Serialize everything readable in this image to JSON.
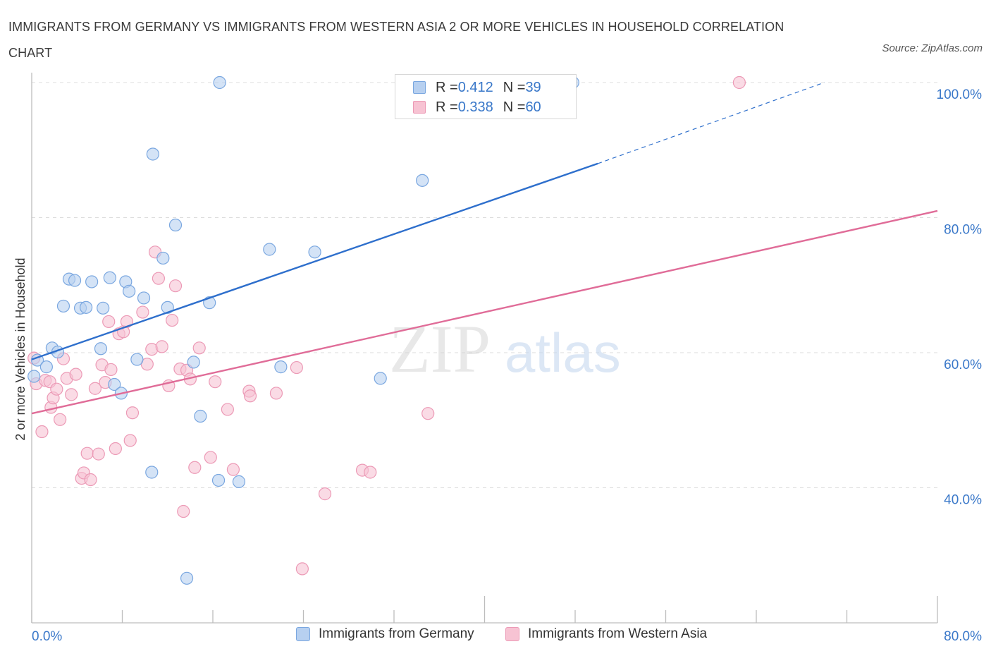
{
  "title": "IMMIGRANTS FROM GERMANY VS IMMIGRANTS FROM WESTERN ASIA 2 OR MORE VEHICLES IN HOUSEHOLD CORRELATION CHART",
  "source": "Source: ZipAtlas.com",
  "watermark": {
    "zip": "ZIP",
    "atlas": "atlas"
  },
  "colors": {
    "blue_fill": "#b7d0f0",
    "blue_line": "#2e6fcc",
    "pink_fill": "#f7c3d3",
    "pink_line": "#e06c98",
    "tick_label": "#3a78c9"
  },
  "legend_top": {
    "rows": [
      {
        "r_label": "R = ",
        "r_value": "0.412",
        "n_label": "N = ",
        "n_value": "39"
      },
      {
        "r_label": "R = ",
        "r_value": "0.338",
        "n_label": "N = ",
        "n_value": "60"
      }
    ]
  },
  "legend_bottom": [
    "Immigrants from Germany",
    "Immigrants from Western Asia"
  ],
  "chart_data": {
    "type": "scatter",
    "title": "IMMIGRANTS FROM GERMANY VS IMMIGRANTS FROM WESTERN ASIA 2 OR MORE VEHICLES IN HOUSEHOLD CORRELATION CHART",
    "xlabel": "",
    "ylabel": "2 or more Vehicles in Household",
    "xlim": [
      0,
      80
    ],
    "ylim": [
      20,
      100
    ],
    "x_tick_labels": [
      "0.0%",
      "80.0%"
    ],
    "y_ticks": [
      40,
      60,
      80,
      100
    ],
    "y_tick_labels": [
      "40.0%",
      "60.0%",
      "80.0%",
      "100.0%"
    ],
    "grid": true,
    "series": [
      {
        "name": "Immigrants from Germany",
        "R": 0.412,
        "N": 39,
        "trend": {
          "x0": 0,
          "y0": 59.0,
          "x1": 50,
          "y1": 88.0,
          "dashed_to_x": 70,
          "dashed_to_y": 100
        },
        "points": [
          [
            0.2,
            56.5
          ],
          [
            0.5,
            58.9
          ],
          [
            1.3,
            57.9
          ],
          [
            1.8,
            60.7
          ],
          [
            2.3,
            60.1
          ],
          [
            2.8,
            66.9
          ],
          [
            3.3,
            70.9
          ],
          [
            3.8,
            70.7
          ],
          [
            4.3,
            66.6
          ],
          [
            4.8,
            66.7
          ],
          [
            5.3,
            70.5
          ],
          [
            6.1,
            60.6
          ],
          [
            6.3,
            66.6
          ],
          [
            6.9,
            71.1
          ],
          [
            7.3,
            55.3
          ],
          [
            7.9,
            54.0
          ],
          [
            8.3,
            70.5
          ],
          [
            8.6,
            69.1
          ],
          [
            9.3,
            59.0
          ],
          [
            9.9,
            68.1
          ],
          [
            10.7,
            89.4
          ],
          [
            10.6,
            42.3
          ],
          [
            11.6,
            74.0
          ],
          [
            12.0,
            66.7
          ],
          [
            12.7,
            78.9
          ],
          [
            13.7,
            26.6
          ],
          [
            14.3,
            58.6
          ],
          [
            14.9,
            50.6
          ],
          [
            15.7,
            67.4
          ],
          [
            16.6,
            100.0
          ],
          [
            16.5,
            41.1
          ],
          [
            18.3,
            40.9
          ],
          [
            21.0,
            75.3
          ],
          [
            22.0,
            57.9
          ],
          [
            25.0,
            74.9
          ],
          [
            30.8,
            56.2
          ],
          [
            34.5,
            85.5
          ],
          [
            40.0,
            100.0
          ],
          [
            47.8,
            100.0
          ]
        ]
      },
      {
        "name": "Immigrants from Western Asia",
        "R": 0.338,
        "N": 60,
        "trend": {
          "x0": 0,
          "y0": 51.0,
          "x1": 80,
          "y1": 81.0
        },
        "points": [
          [
            0.2,
            59.2
          ],
          [
            0.4,
            55.4
          ],
          [
            0.9,
            48.3
          ],
          [
            1.2,
            55.9
          ],
          [
            1.6,
            55.7
          ],
          [
            1.7,
            51.9
          ],
          [
            1.9,
            53.3
          ],
          [
            2.2,
            54.6
          ],
          [
            2.5,
            50.1
          ],
          [
            2.8,
            59.1
          ],
          [
            3.1,
            56.2
          ],
          [
            3.5,
            53.8
          ],
          [
            3.9,
            56.8
          ],
          [
            4.4,
            41.4
          ],
          [
            4.6,
            42.2
          ],
          [
            4.9,
            45.1
          ],
          [
            5.2,
            41.2
          ],
          [
            5.6,
            54.7
          ],
          [
            5.9,
            45.0
          ],
          [
            6.2,
            58.2
          ],
          [
            6.5,
            55.6
          ],
          [
            6.8,
            64.6
          ],
          [
            7.0,
            57.5
          ],
          [
            7.4,
            45.8
          ],
          [
            7.7,
            62.8
          ],
          [
            8.1,
            63.1
          ],
          [
            8.4,
            64.6
          ],
          [
            8.7,
            47.0
          ],
          [
            8.9,
            51.1
          ],
          [
            9.8,
            66.0
          ],
          [
            10.2,
            58.3
          ],
          [
            10.6,
            60.5
          ],
          [
            10.9,
            74.9
          ],
          [
            11.2,
            71.0
          ],
          [
            11.5,
            60.9
          ],
          [
            12.1,
            55.1
          ],
          [
            12.4,
            64.8
          ],
          [
            12.7,
            69.9
          ],
          [
            13.1,
            57.6
          ],
          [
            13.4,
            36.5
          ],
          [
            13.7,
            57.4
          ],
          [
            14.0,
            56.1
          ],
          [
            14.4,
            43.0
          ],
          [
            14.8,
            60.7
          ],
          [
            15.8,
            44.5
          ],
          [
            16.2,
            55.7
          ],
          [
            17.3,
            51.6
          ],
          [
            17.8,
            42.7
          ],
          [
            19.2,
            54.3
          ],
          [
            19.3,
            53.6
          ],
          [
            21.6,
            54.0
          ],
          [
            23.4,
            57.8
          ],
          [
            23.9,
            28.0
          ],
          [
            25.9,
            39.1
          ],
          [
            29.2,
            42.6
          ],
          [
            29.9,
            42.3
          ],
          [
            35.0,
            51.0
          ],
          [
            42.0,
            100.0
          ],
          [
            62.5,
            100.0
          ],
          [
            37.5,
            100.0
          ]
        ]
      }
    ]
  }
}
